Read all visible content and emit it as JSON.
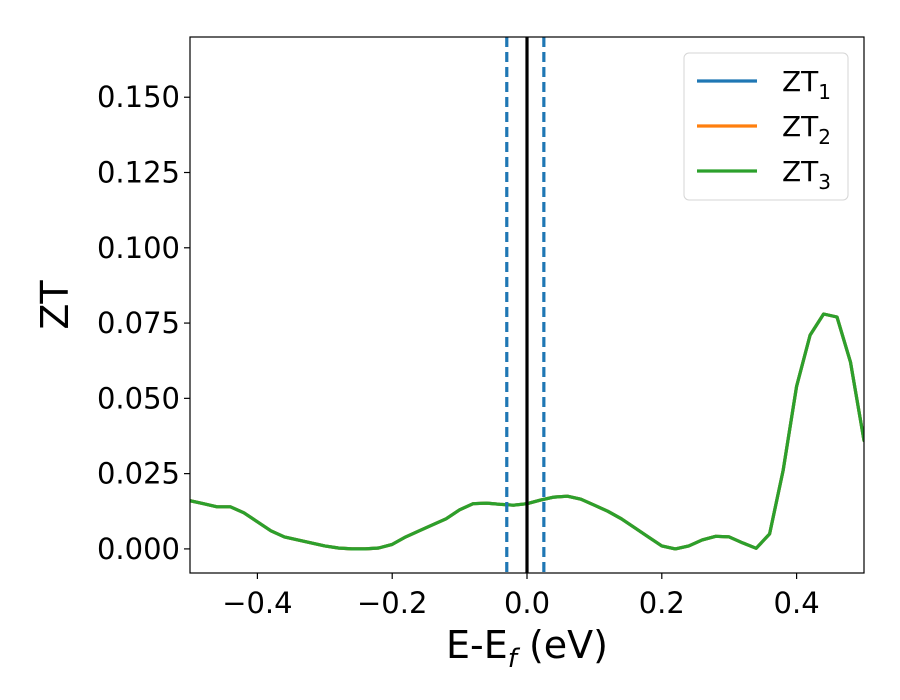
{
  "chart_data": {
    "type": "line",
    "title": "",
    "xlabel": {
      "main": "E-E",
      "sub": "f",
      "suffix": " (eV)"
    },
    "ylabel": "ZT",
    "xlim": [
      -0.5,
      0.5
    ],
    "ylim": [
      -0.008,
      0.17
    ],
    "x_ticks": [
      -0.4,
      -0.2,
      0.0,
      0.2,
      0.4
    ],
    "x_tick_labels": [
      "−0.4",
      "−0.2",
      "0.0",
      "0.2",
      "0.4"
    ],
    "y_ticks": [
      0.0,
      0.025,
      0.05,
      0.075,
      0.1,
      0.125,
      0.15
    ],
    "y_tick_labels": [
      "0.000",
      "0.025",
      "0.050",
      "0.075",
      "0.100",
      "0.125",
      "0.150"
    ],
    "grid": false,
    "legend_position": "top-right",
    "vlines": [
      {
        "x": -0.03,
        "style": "dashed",
        "color": "#1f77b4"
      },
      {
        "x": 0.0,
        "style": "solid",
        "color": "#000000"
      },
      {
        "x": 0.025,
        "style": "dashed",
        "color": "#1f77b4"
      }
    ],
    "x": [
      -0.5,
      -0.48,
      -0.46,
      -0.44,
      -0.42,
      -0.4,
      -0.38,
      -0.36,
      -0.34,
      -0.32,
      -0.3,
      -0.28,
      -0.26,
      -0.24,
      -0.22,
      -0.2,
      -0.18,
      -0.16,
      -0.14,
      -0.12,
      -0.1,
      -0.08,
      -0.06,
      -0.04,
      -0.02,
      0.0,
      0.02,
      0.04,
      0.06,
      0.08,
      0.1,
      0.12,
      0.14,
      0.16,
      0.18,
      0.2,
      0.22,
      0.24,
      0.26,
      0.28,
      0.3,
      0.32,
      0.34,
      0.36,
      0.38,
      0.4,
      0.42,
      0.44,
      0.46,
      0.48,
      0.5
    ],
    "series": [
      {
        "name_main": "ZT",
        "name_sub": "1",
        "color": "#1f77b4",
        "values": [
          0.016,
          0.015,
          0.014,
          0.014,
          0.012,
          0.009,
          0.006,
          0.004,
          0.003,
          0.002,
          0.001,
          0.0003,
          0.0,
          0.0,
          0.0003,
          0.0015,
          0.004,
          0.006,
          0.008,
          0.01,
          0.013,
          0.015,
          0.0152,
          0.0148,
          0.0145,
          0.015,
          0.0162,
          0.0172,
          0.0175,
          0.0165,
          0.0145,
          0.0125,
          0.01,
          0.007,
          0.004,
          0.001,
          0.0,
          0.001,
          0.003,
          0.0042,
          0.004,
          0.002,
          0.0002,
          0.005,
          0.026,
          0.054,
          0.071,
          0.078,
          0.077,
          0.062,
          0.036
        ]
      },
      {
        "name_main": "ZT",
        "name_sub": "2",
        "color": "#ff7f0e",
        "values": [
          0.016,
          0.015,
          0.014,
          0.014,
          0.012,
          0.009,
          0.006,
          0.004,
          0.003,
          0.002,
          0.001,
          0.0003,
          0.0,
          0.0,
          0.0003,
          0.0015,
          0.004,
          0.006,
          0.008,
          0.01,
          0.013,
          0.015,
          0.0152,
          0.0148,
          0.0145,
          0.015,
          0.0162,
          0.0172,
          0.0175,
          0.0165,
          0.0145,
          0.0125,
          0.01,
          0.007,
          0.004,
          0.001,
          0.0,
          0.001,
          0.003,
          0.0042,
          0.004,
          0.002,
          0.0002,
          0.005,
          0.026,
          0.054,
          0.071,
          0.078,
          0.077,
          0.062,
          0.036
        ]
      },
      {
        "name_main": "ZT",
        "name_sub": "3",
        "color": "#2ca02c",
        "values": [
          0.016,
          0.015,
          0.014,
          0.014,
          0.012,
          0.009,
          0.006,
          0.004,
          0.003,
          0.002,
          0.001,
          0.0003,
          0.0,
          0.0,
          0.0003,
          0.0015,
          0.004,
          0.006,
          0.008,
          0.01,
          0.013,
          0.015,
          0.0152,
          0.0148,
          0.0145,
          0.015,
          0.0162,
          0.0172,
          0.0175,
          0.0165,
          0.0145,
          0.0125,
          0.01,
          0.007,
          0.004,
          0.001,
          0.0,
          0.001,
          0.003,
          0.0042,
          0.004,
          0.002,
          0.0002,
          0.005,
          0.026,
          0.054,
          0.071,
          0.078,
          0.077,
          0.062,
          0.036
        ]
      }
    ]
  }
}
